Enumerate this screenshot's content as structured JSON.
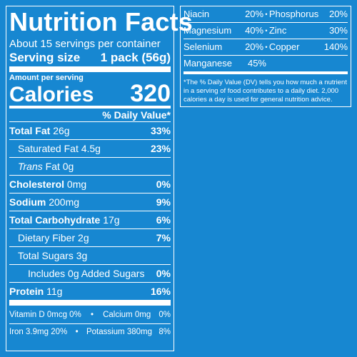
{
  "label": {
    "title": "Nutrition Facts",
    "servings": "About 15 servings per container",
    "serving_size_label": "Serving size",
    "serving_size_value": "1 pack (56g)",
    "amount_per_serving": "Amount per serving",
    "calories_label": "Calories",
    "calories_value": "320",
    "daily_value_header": "% Daily Value*"
  },
  "nutrients": [
    {
      "name": "Total Fat",
      "amount": "26g",
      "dv": "33%"
    },
    {
      "name": "Saturated Fat",
      "amount": "4.5g",
      "dv": "23%"
    },
    {
      "name": "Trans",
      "amount": "Fat 0g",
      "dv": ""
    },
    {
      "name": "Cholesterol",
      "amount": "0mg",
      "dv": "0%"
    },
    {
      "name": "Sodium",
      "amount": "200mg",
      "dv": "9%"
    },
    {
      "name": "Total Carbohydrate",
      "amount": "17g",
      "dv": "6%"
    },
    {
      "name": "Dietary Fiber",
      "amount": "2g",
      "dv": "7%"
    },
    {
      "name": "Total Sugars",
      "amount": "3g",
      "dv": ""
    },
    {
      "name": "Includes 0g Added Sugars",
      "amount": "",
      "dv": "0%"
    },
    {
      "name": "Protein",
      "amount": "11g",
      "dv": "16%"
    }
  ],
  "vitamins": [
    {
      "name": "Vitamin D",
      "amount": "0mcg",
      "dv": "0%"
    },
    {
      "name": "Calcium",
      "amount": "0mg",
      "dv": "0%"
    },
    {
      "name": "Iron",
      "amount": "3.9mg",
      "dv": "20%"
    },
    {
      "name": "Potassium",
      "amount": "380mg",
      "dv": "8%"
    }
  ],
  "minerals": [
    {
      "name": "Niacin",
      "dv": "20%"
    },
    {
      "name": "Phosphorus",
      "dv": "20%"
    },
    {
      "name": "Magnesium",
      "dv": "40%"
    },
    {
      "name": "Zinc",
      "dv": "30%"
    },
    {
      "name": "Selenium",
      "dv": "20%"
    },
    {
      "name": "Copper",
      "dv": "140%"
    },
    {
      "name": "Manganese",
      "dv": "45%"
    }
  ],
  "separator": "•",
  "footnote": "*The % Daily Value (DV) tells you how much a nutrient in a serving of food contributes to a daily diet. 2,000 calories a day is used for general nutrition advice.",
  "colors": {
    "background": "#1787d1",
    "text": "#ffffff"
  }
}
